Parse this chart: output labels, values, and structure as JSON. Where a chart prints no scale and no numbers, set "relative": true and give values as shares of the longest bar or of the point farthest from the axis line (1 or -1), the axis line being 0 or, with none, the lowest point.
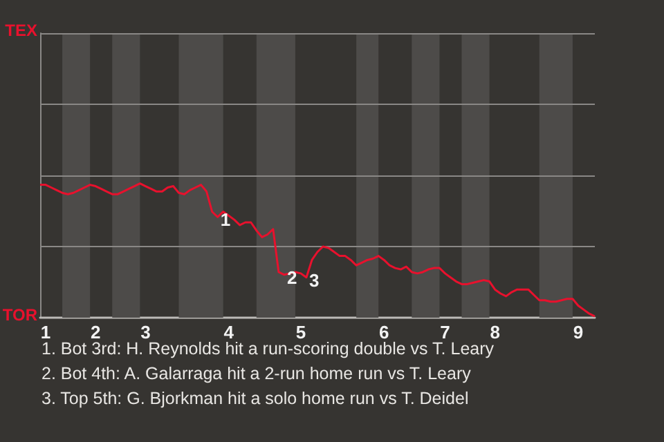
{
  "chart_data": {
    "type": "line",
    "relative": true,
    "categories": [
      null,
      "1",
      null,
      null,
      null,
      null,
      null,
      null,
      null,
      null,
      "2",
      null,
      null,
      null,
      null,
      null,
      null,
      null,
      null,
      "3",
      null,
      null,
      null,
      null,
      null,
      null,
      null,
      null,
      null,
      null,
      null,
      null,
      null,
      null,
      "4",
      null,
      null,
      null,
      null,
      null,
      null,
      null,
      null,
      null,
      null,
      null,
      null,
      "5",
      null,
      null,
      null,
      null,
      null,
      null,
      null,
      null,
      null,
      null,
      null,
      null,
      null,
      null,
      "6",
      null,
      null,
      null,
      null,
      null,
      null,
      null,
      null,
      null,
      null,
      "7",
      null,
      null,
      null,
      null,
      null,
      null,
      null,
      null,
      "8",
      null,
      null,
      null,
      null,
      null,
      null,
      null,
      null,
      null,
      null,
      null,
      null,
      null,
      null,
      "9",
      null,
      null,
      null
    ],
    "series": [
      {
        "color": "#e8112d",
        "values": [
          0.99,
          0.99,
          0.97,
          0.95,
          0.93,
          0.92,
          0.93,
          0.95,
          0.97,
          0.99,
          0.98,
          0.96,
          0.94,
          0.92,
          0.92,
          0.94,
          0.96,
          0.98,
          1,
          0.98,
          0.96,
          0.94,
          0.94,
          0.97,
          0.98,
          0.93,
          0.92,
          0.95,
          0.97,
          0.99,
          0.94,
          0.79,
          0.75,
          0.79,
          0.76,
          0.73,
          0.69,
          0.71,
          0.71,
          0.65,
          0.6,
          0.62,
          0.66,
          0.34,
          0.32,
          0.33,
          0.34,
          0.33,
          0.3,
          0.43,
          0.49,
          0.53,
          0.52,
          0.49,
          0.46,
          0.46,
          0.43,
          0.39,
          0.41,
          0.43,
          0.44,
          0.46,
          0.43,
          0.39,
          0.37,
          0.36,
          0.38,
          0.34,
          0.33,
          0.34,
          0.36,
          0.37,
          0.37,
          0.33,
          0.3,
          0.27,
          0.25,
          0.25,
          0.26,
          0.27,
          0.28,
          0.27,
          0.21,
          0.18,
          0.16,
          0.19,
          0.21,
          0.21,
          0.21,
          0.17,
          0.13,
          0.13,
          0.12,
          0.12,
          0.13,
          0.14,
          0.14,
          0.09,
          0.06,
          0.03,
          0.01
        ]
      }
    ],
    "marker": "none",
    "ref_lines": [
      {
        "axis": "y",
        "value": 0.53,
        "color": "#8a8886"
      },
      {
        "axis": "y",
        "value": 1.06,
        "color": "#8a8886"
      },
      {
        "axis": "y",
        "value": 1.59,
        "color": "#8a8886"
      },
      {
        "axis": "y",
        "value": 2.12,
        "color": "#8a8886"
      }
    ],
    "annotations": [
      {
        "text": "1",
        "y": 0.75
      },
      {
        "text": "2",
        "y": 0.32
      },
      {
        "text": "3",
        "y": 0.3
      },
      "TEX",
      "TOR",
      "1. Bot 3rd: H. Reynolds hit a run-scoring double vs T. Leary",
      "2. Bot 4th: A. Galarraga hit a 2-run home run vs T. Leary",
      "3. Top 5th: G. Bjorkman hit a solo home run vs T. Deidel"
    ]
  }
}
